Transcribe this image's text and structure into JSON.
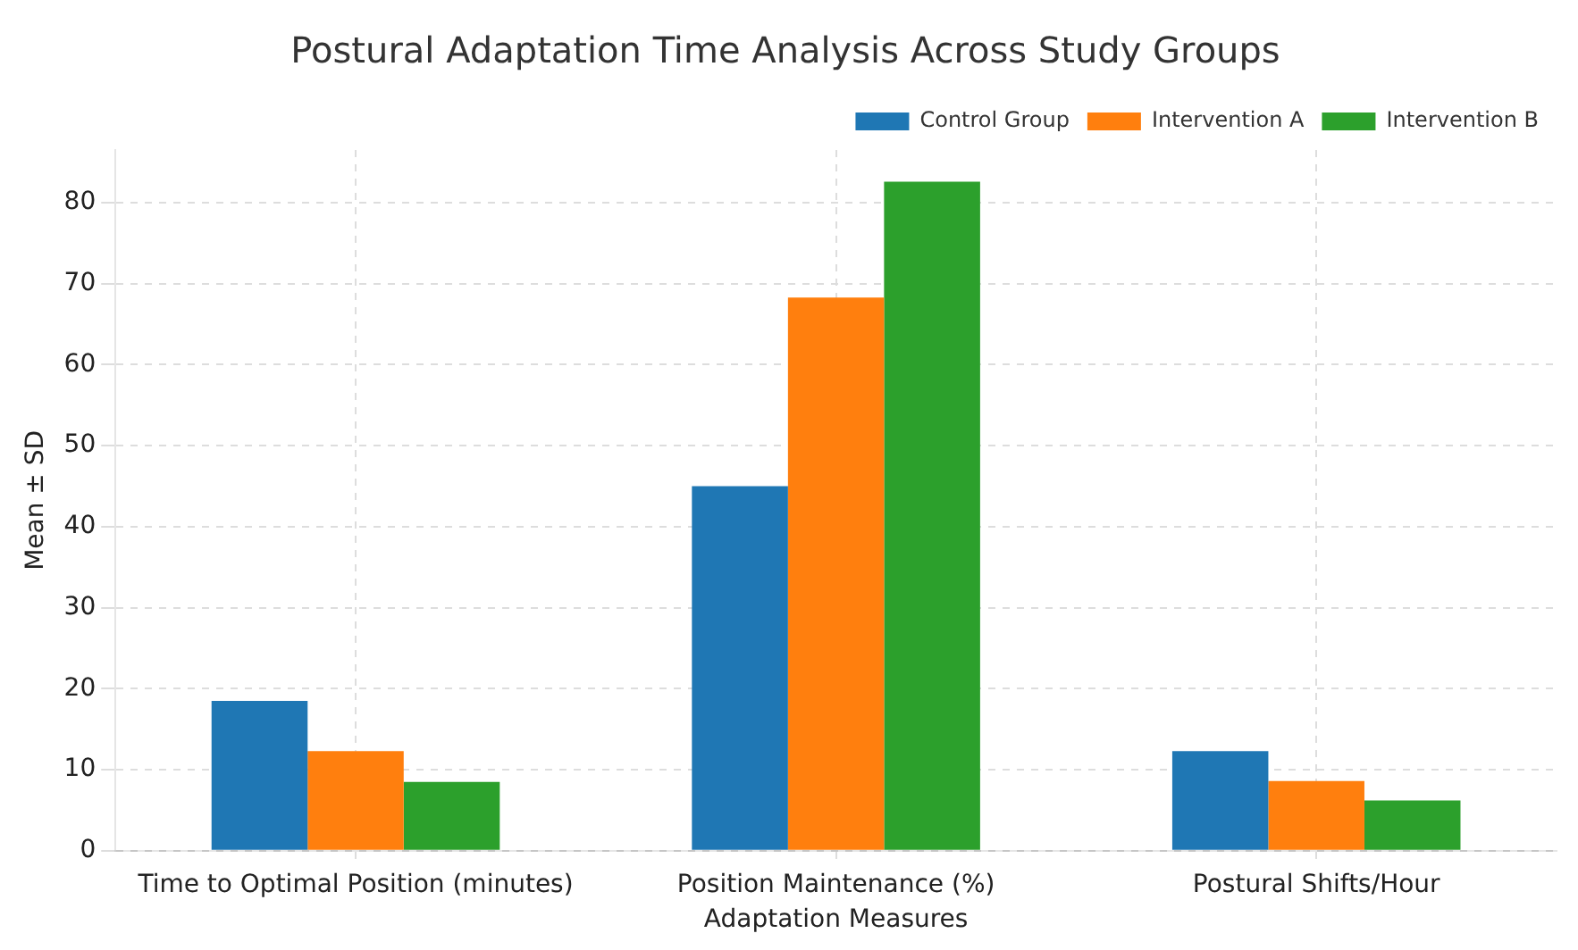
{
  "chart_data": {
    "type": "bar",
    "title": "Postural Adaptation Time Analysis Across Study Groups",
    "xlabel": "Adaptation Measures",
    "ylabel": "Mean ± SD",
    "categories": [
      "Time to Optimal Position (minutes)",
      "Position Maintenance (%)",
      "Postural Shifts/Hour"
    ],
    "series": [
      {
        "name": "Control Group",
        "color": "#1f77b4",
        "values": [
          18.5,
          45,
          12.3
        ]
      },
      {
        "name": "Intervention A",
        "color": "#ff7f0e",
        "values": [
          12.3,
          68.3,
          8.6
        ]
      },
      {
        "name": "Intervention B",
        "color": "#2ca02c",
        "values": [
          8.5,
          82.6,
          6.2
        ]
      }
    ],
    "ylim": [
      0,
      86.5
    ],
    "yticks": [
      0,
      10,
      20,
      30,
      40,
      50,
      60,
      70,
      80
    ],
    "grid": true,
    "legend": "top right"
  }
}
